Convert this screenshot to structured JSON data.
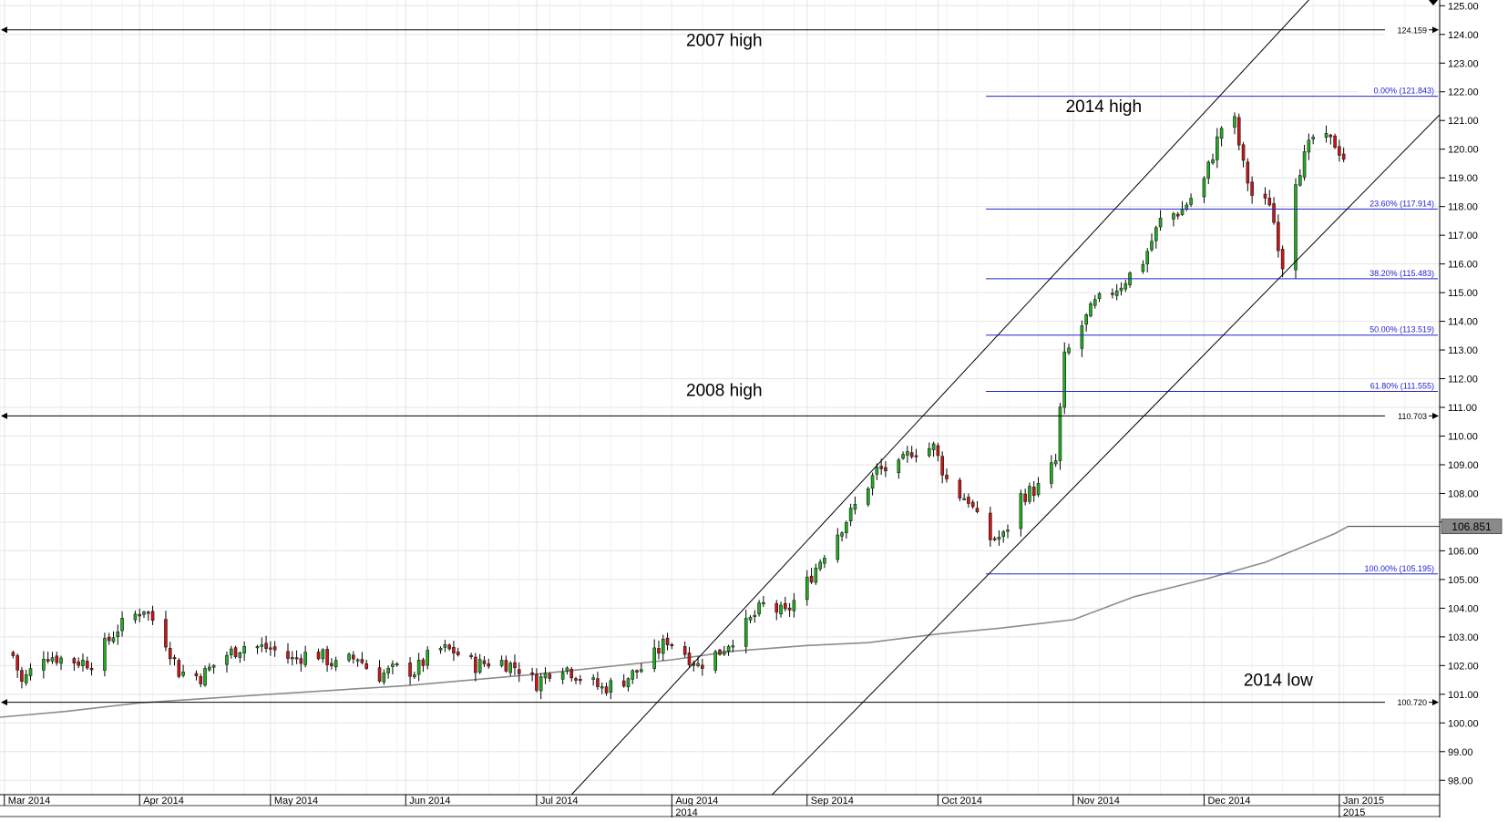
{
  "chart_data": {
    "type": "candlestick",
    "grid": true,
    "ylim": [
      97.5,
      125.2
    ],
    "xlim": [
      "2014-02-28",
      "2015-01-24"
    ],
    "y_ticks": [
      "98.00",
      "99.00",
      "100.00",
      "101.00",
      "102.00",
      "103.00",
      "104.00",
      "105.00",
      "106.00",
      "107.00",
      "108.00",
      "109.00",
      "110.00",
      "111.00",
      "112.00",
      "113.00",
      "114.00",
      "115.00",
      "116.00",
      "117.00",
      "118.00",
      "119.00",
      "120.00",
      "121.00",
      "122.00",
      "123.00",
      "124.00",
      "125.00"
    ],
    "x_ticks": [
      {
        "date": "2014-03-01",
        "label": "Mar 2014"
      },
      {
        "date": "2014-04-01",
        "label": "Apr 2014"
      },
      {
        "date": "2014-05-01",
        "label": "May 2014"
      },
      {
        "date": "2014-06-01",
        "label": "Jun 2014"
      },
      {
        "date": "2014-07-01",
        "label": "Jul 2014"
      },
      {
        "date": "2014-08-01",
        "label": "Aug 2014"
      },
      {
        "date": "2014-09-01",
        "label": "Sep 2014"
      },
      {
        "date": "2014-10-01",
        "label": "Oct 2014"
      },
      {
        "date": "2014-11-01",
        "label": "Nov 2014"
      },
      {
        "date": "2014-12-01",
        "label": "Dec 2014"
      },
      {
        "date": "2015-01-01",
        "label": "Jan 2015"
      }
    ],
    "year_labels": [
      {
        "date": "2014-08-01",
        "label": "2014"
      },
      {
        "date": "2015-01-01",
        "label": "2015"
      }
    ],
    "anchors": [
      [
        "2014-03-01",
        103.3
      ],
      [
        "2014-03-05",
        101.4
      ],
      [
        "2014-03-10",
        102.4
      ],
      [
        "2014-03-15",
        102.2
      ],
      [
        "2014-03-21",
        102.1
      ],
      [
        "2014-03-27",
        103.3
      ],
      [
        "2014-04-02",
        104.0
      ],
      [
        "2014-04-06",
        103.2
      ],
      [
        "2014-04-10",
        101.8
      ],
      [
        "2014-04-15",
        101.6
      ],
      [
        "2014-04-20",
        102.3
      ],
      [
        "2014-04-25",
        102.7
      ],
      [
        "2014-05-01",
        102.6
      ],
      [
        "2014-05-06",
        102.2
      ],
      [
        "2014-05-11",
        102.5
      ],
      [
        "2014-05-16",
        102.0
      ],
      [
        "2014-05-21",
        102.3
      ],
      [
        "2014-05-25",
        101.6
      ],
      [
        "2014-05-30",
        101.9
      ],
      [
        "2014-06-03",
        101.8
      ],
      [
        "2014-06-08",
        102.6
      ],
      [
        "2014-06-12",
        102.5
      ],
      [
        "2014-06-17",
        102.0
      ],
      [
        "2014-06-22",
        102.2
      ],
      [
        "2014-06-27",
        101.9
      ],
      [
        "2014-07-01",
        101.4
      ],
      [
        "2014-07-06",
        102.1
      ],
      [
        "2014-07-11",
        101.6
      ],
      [
        "2014-07-16",
        101.2
      ],
      [
        "2014-07-21",
        101.5
      ],
      [
        "2014-07-26",
        102.0
      ],
      [
        "2014-07-31",
        102.9
      ],
      [
        "2014-08-03",
        102.6
      ],
      [
        "2014-08-07",
        102.0
      ],
      [
        "2014-08-12",
        102.5
      ],
      [
        "2014-08-18",
        103.4
      ],
      [
        "2014-08-22",
        104.1
      ],
      [
        "2014-08-27",
        103.8
      ],
      [
        "2014-09-01",
        104.9
      ],
      [
        "2014-09-06",
        106.2
      ],
      [
        "2014-09-11",
        107.3
      ],
      [
        "2014-09-17",
        108.8
      ],
      [
        "2014-09-22",
        108.9
      ],
      [
        "2014-09-25",
        109.5
      ],
      [
        "2014-09-30",
        109.6
      ],
      [
        "2014-10-04",
        108.1
      ],
      [
        "2014-10-08",
        107.8
      ],
      [
        "2014-10-12",
        106.4
      ],
      [
        "2014-10-16",
        106.5
      ],
      [
        "2014-10-20",
        107.9
      ],
      [
        "2014-10-24",
        108.2
      ],
      [
        "2014-10-28",
        109.1
      ],
      [
        "2014-10-30",
        112.7
      ],
      [
        "2014-11-02",
        113.6
      ],
      [
        "2014-11-06",
        114.6
      ],
      [
        "2014-11-12",
        115.3
      ],
      [
        "2014-11-17",
        116.1
      ],
      [
        "2014-11-21",
        117.5
      ],
      [
        "2014-11-26",
        117.9
      ],
      [
        "2014-12-01",
        118.9
      ],
      [
        "2014-12-04",
        120.3
      ],
      [
        "2014-12-07",
        121.7
      ],
      [
        "2014-12-10",
        119.4
      ],
      [
        "2014-12-13",
        117.9
      ],
      [
        "2014-12-16",
        118.2
      ],
      [
        "2014-12-19",
        116.0
      ],
      [
        "2014-12-22",
        119.0
      ],
      [
        "2014-12-26",
        120.4
      ],
      [
        "2014-12-31",
        120.2
      ],
      [
        "2015-01-03",
        119.5
      ]
    ],
    "moving_average": [
      [
        "2014-02-28",
        100.2
      ],
      [
        "2014-03-15",
        100.4
      ],
      [
        "2014-04-01",
        100.7
      ],
      [
        "2014-05-01",
        101.0
      ],
      [
        "2014-06-01",
        101.3
      ],
      [
        "2014-07-01",
        101.7
      ],
      [
        "2014-08-01",
        102.2
      ],
      [
        "2014-08-15",
        102.5
      ],
      [
        "2014-09-01",
        102.7
      ],
      [
        "2014-09-15",
        102.8
      ],
      [
        "2014-10-01",
        103.1
      ],
      [
        "2014-10-15",
        103.3
      ],
      [
        "2014-11-01",
        103.6
      ],
      [
        "2014-11-15",
        104.4
      ],
      [
        "2014-12-01",
        105.0
      ],
      [
        "2014-12-15",
        105.6
      ],
      [
        "2014-12-31",
        106.6
      ],
      [
        "2015-01-03",
        106.851
      ]
    ],
    "ma_last_value": "106.851",
    "horizontal_levels": [
      {
        "value": 124.159,
        "label": "124.159",
        "name": "2007 high"
      },
      {
        "value": 110.703,
        "label": "110.703",
        "name": "2008 high"
      },
      {
        "value": 100.72,
        "label": "100.720",
        "name": "2014 low"
      }
    ],
    "fibonacci": {
      "start_date": "2014-10-12",
      "levels": [
        {
          "value": 121.843,
          "label": "0.00% (121.843)"
        },
        {
          "value": 117.914,
          "label": "23.60% (117.914)"
        },
        {
          "value": 115.483,
          "label": "38.20% (115.483)"
        },
        {
          "value": 113.519,
          "label": "50.00% (113.519)"
        },
        {
          "value": 111.555,
          "label": "61.80% (111.555)"
        },
        {
          "value": 105.195,
          "label": "100.00% (105.195)"
        }
      ]
    },
    "channel_lines": [
      {
        "from": [
          "2014-07-09",
          97.5
        ],
        "to": [
          "2014-12-25",
          125.2
        ]
      },
      {
        "from": [
          "2014-08-24",
          97.5
        ],
        "to": [
          "2015-01-24",
          121.2
        ]
      }
    ],
    "annotations": [
      {
        "text": "2007 high",
        "date": "2014-08-13",
        "value": 123.6
      },
      {
        "text": "2008 high",
        "date": "2014-08-13",
        "value": 111.4
      },
      {
        "text": "2014 high",
        "date": "2014-11-08",
        "value": 121.3
      },
      {
        "text": "2014 low",
        "date": "2014-12-18",
        "value": 101.3
      }
    ],
    "colors": {
      "up": "#1fae1f",
      "down": "#cc1515",
      "wick": "#000000",
      "grid": "#e4e4e4",
      "fib": "#2323d2",
      "ma": "#8c8c8c",
      "level": "#000000"
    }
  }
}
